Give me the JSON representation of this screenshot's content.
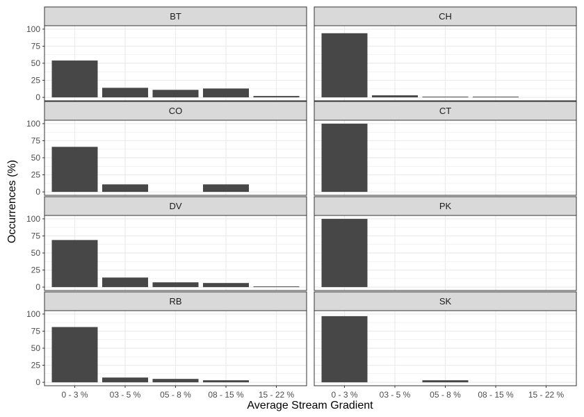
{
  "chart_data": {
    "type": "bar",
    "xlabel": "Average Stream Gradient",
    "ylabel": "Occurrences (%)",
    "ylim": [
      0,
      100
    ],
    "yticks": [
      "0",
      "25",
      "50",
      "75",
      "100"
    ],
    "categories": [
      "0 - 3 %",
      "03 - 5 %",
      "05 - 8 %",
      "08 - 15 %",
      "15 - 22 %"
    ],
    "grid": true,
    "colors": {
      "bar": "#474747",
      "strip": "#d9d9d9",
      "grid": "#ebebeb",
      "border": "#333333"
    },
    "panels": [
      {
        "name": "BT",
        "values": [
          54,
          14,
          11,
          13,
          2
        ]
      },
      {
        "name": "CH",
        "values": [
          94,
          3,
          1,
          1,
          0
        ]
      },
      {
        "name": "CO",
        "values": [
          66,
          11,
          0,
          11,
          0
        ]
      },
      {
        "name": "CT",
        "values": [
          100,
          0,
          0,
          0,
          0
        ]
      },
      {
        "name": "DV",
        "values": [
          69,
          14,
          7,
          6,
          1
        ]
      },
      {
        "name": "PK",
        "values": [
          100,
          0,
          0,
          0,
          0
        ]
      },
      {
        "name": "RB",
        "values": [
          81,
          7,
          5,
          3,
          0
        ]
      },
      {
        "name": "SK",
        "values": [
          97,
          0,
          3,
          0,
          0
        ]
      }
    ]
  }
}
